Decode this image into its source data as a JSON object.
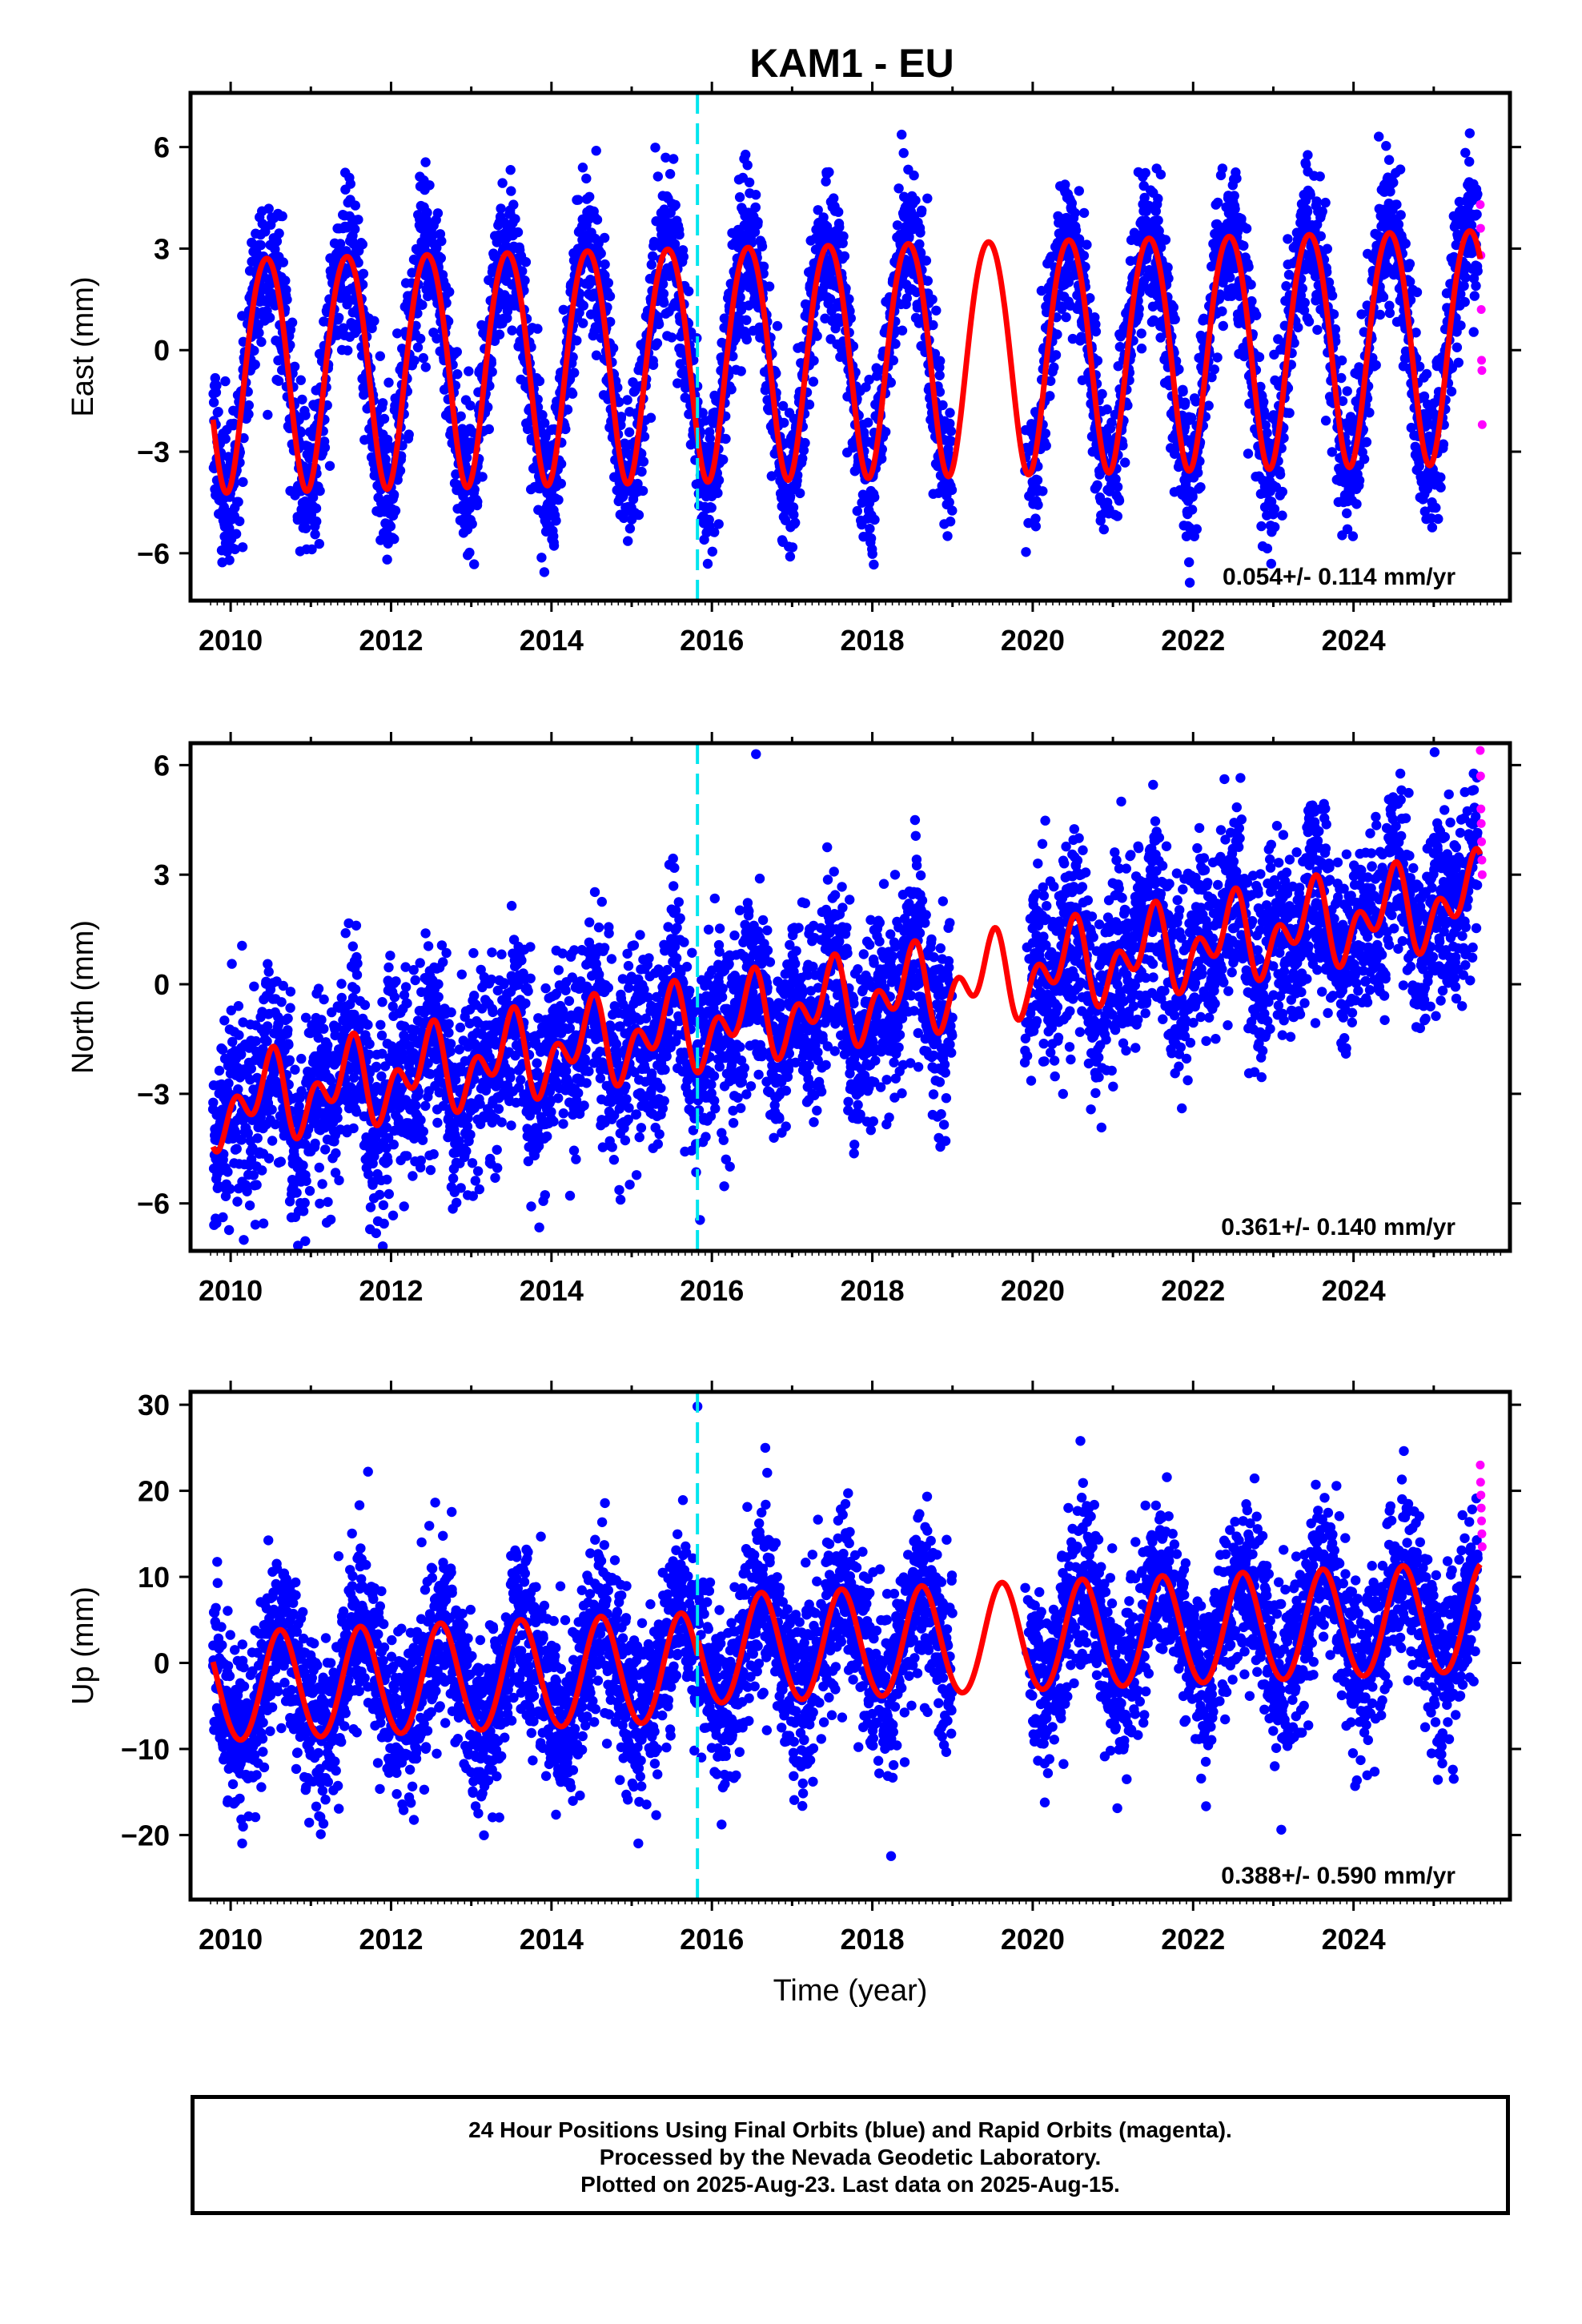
{
  "title": "KAM1 - EU",
  "chart_data": [
    {
      "type": "scatter",
      "ylabel": "East (mm)",
      "xlim": [
        2009.5,
        2025.95
      ],
      "ylim": [
        -7.4,
        7.6
      ],
      "yticks": [
        -6,
        -3,
        0,
        3,
        6
      ],
      "xticks": [
        2010,
        2012,
        2014,
        2016,
        2018,
        2020,
        2022,
        2024
      ],
      "rate_label": "0.054+/- 0.114 mm/yr",
      "model": {
        "offset": -0.1,
        "trend": 0.054,
        "annual_amp": 3.45,
        "annual_peak": 0.45,
        "semiannual_amp": 0.25,
        "semiannual_peak": 0.2
      },
      "scatter": 1.1,
      "data_gap": [
        2019.0,
        2019.9
      ],
      "rapid": [
        4.3,
        3.6,
        2.8,
        1.2,
        -0.3,
        -0.6,
        -2.2
      ]
    },
    {
      "type": "scatter",
      "ylabel": "North (mm)",
      "xlim": [
        2009.5,
        2025.95
      ],
      "ylim": [
        -7.3,
        6.6
      ],
      "yticks": [
        -6,
        -3,
        0,
        3,
        6
      ],
      "xticks": [
        2010,
        2012,
        2014,
        2016,
        2018,
        2020,
        2022,
        2024
      ],
      "rate_label": "0.361+/- 0.140 mm/yr",
      "model": {
        "offset": -0.5,
        "trend": 0.361,
        "annual_amp": 0.75,
        "annual_peak": 0.45,
        "semiannual_amp": 0.75,
        "semiannual_peak": 0.05
      },
      "scatter": 1.3,
      "data_gap": [
        2019.0,
        2019.9
      ],
      "rapid": [
        6.4,
        5.7,
        4.8,
        4.4,
        3.9,
        3.4,
        3.0
      ]
    },
    {
      "type": "scatter",
      "ylabel": "Up (mm)",
      "xlim": [
        2009.5,
        2025.95
      ],
      "ylim": [
        -27.5,
        31.5
      ],
      "yticks": [
        -20,
        -10,
        0,
        10,
        20,
        30
      ],
      "xticks": [
        2010,
        2012,
        2014,
        2016,
        2018,
        2020,
        2022,
        2024
      ],
      "xlabel": "Time (year)",
      "rate_label": "0.388+/- 0.590 mm/yr",
      "model": {
        "offset": 0.0,
        "trend": 0.388,
        "annual_amp": 6.3,
        "annual_peak": 0.62,
        "semiannual_amp": 0.3,
        "semiannual_peak": 0.1,
        "step_2015": 5.0
      },
      "scatter": 5.0,
      "data_gap": [
        2019.0,
        2019.9
      ],
      "rapid": [
        23.0,
        21.0,
        19.5,
        18.0,
        16.5,
        15.0,
        13.5
      ]
    }
  ],
  "event_line_year": 2015.82,
  "outliers": {
    "north": {
      "x": 2016.55,
      "y": 6.3
    },
    "up": {
      "x": 2015.82,
      "y": 29.8
    }
  },
  "footer": {
    "line1": "24 Hour Positions Using Final Orbits (blue) and Rapid Orbits (magenta).",
    "line2": "Processed by the Nevada Geodetic Laboratory.",
    "line3": "Plotted on 2025-Aug-23. Last data on 2025-Aug-15."
  },
  "colors": {
    "final_points": "#0000ff",
    "rapid_points": "#ff00ff",
    "model_line": "#ff0000",
    "event_line": "#00e5ee",
    "axes": "#000000"
  }
}
